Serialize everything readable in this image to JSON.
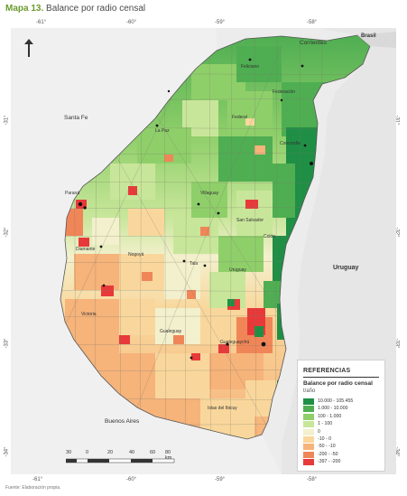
{
  "header": {
    "title_prefix": "Mapa 13.",
    "title_text": "Balance por radio censal"
  },
  "coords": {
    "top": [
      "-61°",
      "-60°",
      "-59°",
      "-58°"
    ],
    "bottom": [
      "-61°",
      "-60°",
      "-59°",
      "-58°"
    ],
    "left": [
      "-31°",
      "-32°",
      "-33°",
      "-34°"
    ],
    "right": [
      "-31°",
      "-32°",
      "-33°",
      "-34°"
    ]
  },
  "labels": {
    "countries": {
      "brasil": "Brasil",
      "uruguay": "Uruguay"
    },
    "provinces": {
      "santa_fe": "Santa Fe",
      "corrientes": "Corrientes",
      "buenos_aires": "Buenos Aires"
    },
    "cities": [
      "Feliciano",
      "Federación",
      "La Paz",
      "Federal",
      "Concordia",
      "Villaguay",
      "Paraná",
      "Diamante",
      "Nogoyá",
      "Victoria",
      "Tala",
      "Uruguay",
      "Gualeguay",
      "Gualeguaychú",
      "Islas del Ibicuy",
      "Colón",
      "San Salvador"
    ]
  },
  "legend": {
    "title": "REFERENCIAS",
    "subtitle": "Balance por radio censal",
    "unit": "t/año",
    "items": [
      {
        "label": "10.000 - 105.455",
        "color": "#1f8f45"
      },
      {
        "label": "1.000 - 10.000",
        "color": "#4fae52"
      },
      {
        "label": "100 - 1.000",
        "color": "#8fcf6a"
      },
      {
        "label": "1 - 100",
        "color": "#c8e69a"
      },
      {
        "label": "0",
        "color": "#f3f0cd"
      },
      {
        "label": "-10 - 0",
        "color": "#f9d79c"
      },
      {
        "label": "-50 - -10",
        "color": "#f6b37a"
      },
      {
        "label": "-200 - -50",
        "color": "#f08658"
      },
      {
        "label": "-397 - -200",
        "color": "#e8393a"
      }
    ]
  },
  "scale": {
    "ticks": [
      "30",
      "0",
      "20",
      "40",
      "60",
      "80 km"
    ]
  },
  "colors": {
    "sea": "#ececec",
    "dark_green": "#1f8f45",
    "green": "#4fae52",
    "light_green": "#8fcf6a",
    "pale_green": "#c8e69a",
    "cream": "#f3f0cd",
    "light_orange": "#f9d79c",
    "orange": "#f6b37a",
    "dark_orange": "#f08658",
    "red": "#e8393a"
  },
  "footnote": "Fuente: Elaboración propia."
}
